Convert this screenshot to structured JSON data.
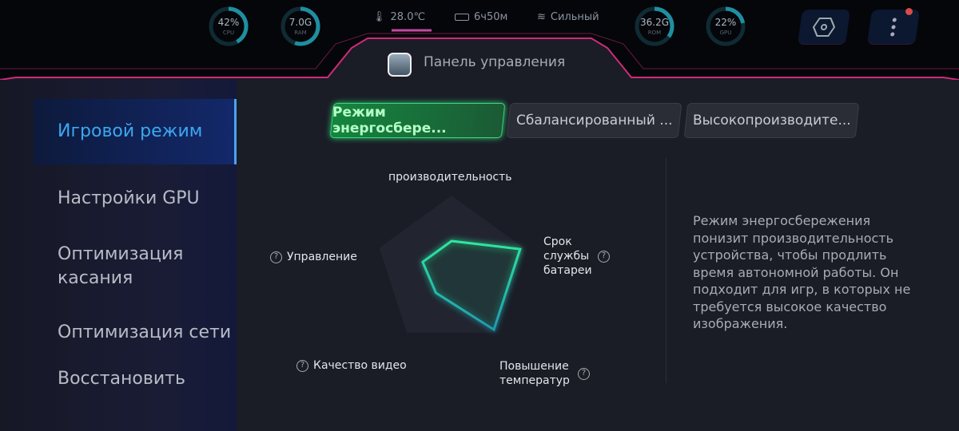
{
  "header": {
    "gauges": [
      {
        "value": "42%",
        "label": "CPU",
        "percent": 42
      },
      {
        "value": "7.0G",
        "label": "RAM",
        "percent": 55
      },
      {
        "value": "36.2G",
        "label": "ROM",
        "percent": 35
      },
      {
        "value": "22%",
        "label": "GPU",
        "percent": 22
      }
    ],
    "temperature": "28.0℃",
    "battery": "6ч50м",
    "signal": "Сильный",
    "title": "Панель управления",
    "icons": [
      "thermometer-icon",
      "battery-icon",
      "wifi-icon",
      "settings-hex-icon",
      "more-vertical-icon"
    ],
    "notification_color": "#d94a4a"
  },
  "sidebar": {
    "items": [
      {
        "label": "Игровой режим",
        "active": true
      },
      {
        "label": "Настройки GPU"
      },
      {
        "label": "Оптимизация касания"
      },
      {
        "label": "Оптимизация сети"
      },
      {
        "label": "Восстановить"
      }
    ]
  },
  "modes": [
    {
      "label": "Режим энергосбере...",
      "selected": true
    },
    {
      "label": "Сбалансированный ..."
    },
    {
      "label": "Высокопроизводите..."
    }
  ],
  "radar": {
    "axes": [
      "производительность",
      "Срок службы батареи",
      "Повышение температур",
      "Качество видео",
      "Управление"
    ],
    "values": [
      0.4,
      0.95,
      0.95,
      0.35,
      0.4
    ],
    "accent": "#2ee8a0"
  },
  "description": "Режим энергосбережения понизит производительность устройства, чтобы продлить время автономной работы. Он подходит для игр, в которых не требуется высокое качество изображения."
}
